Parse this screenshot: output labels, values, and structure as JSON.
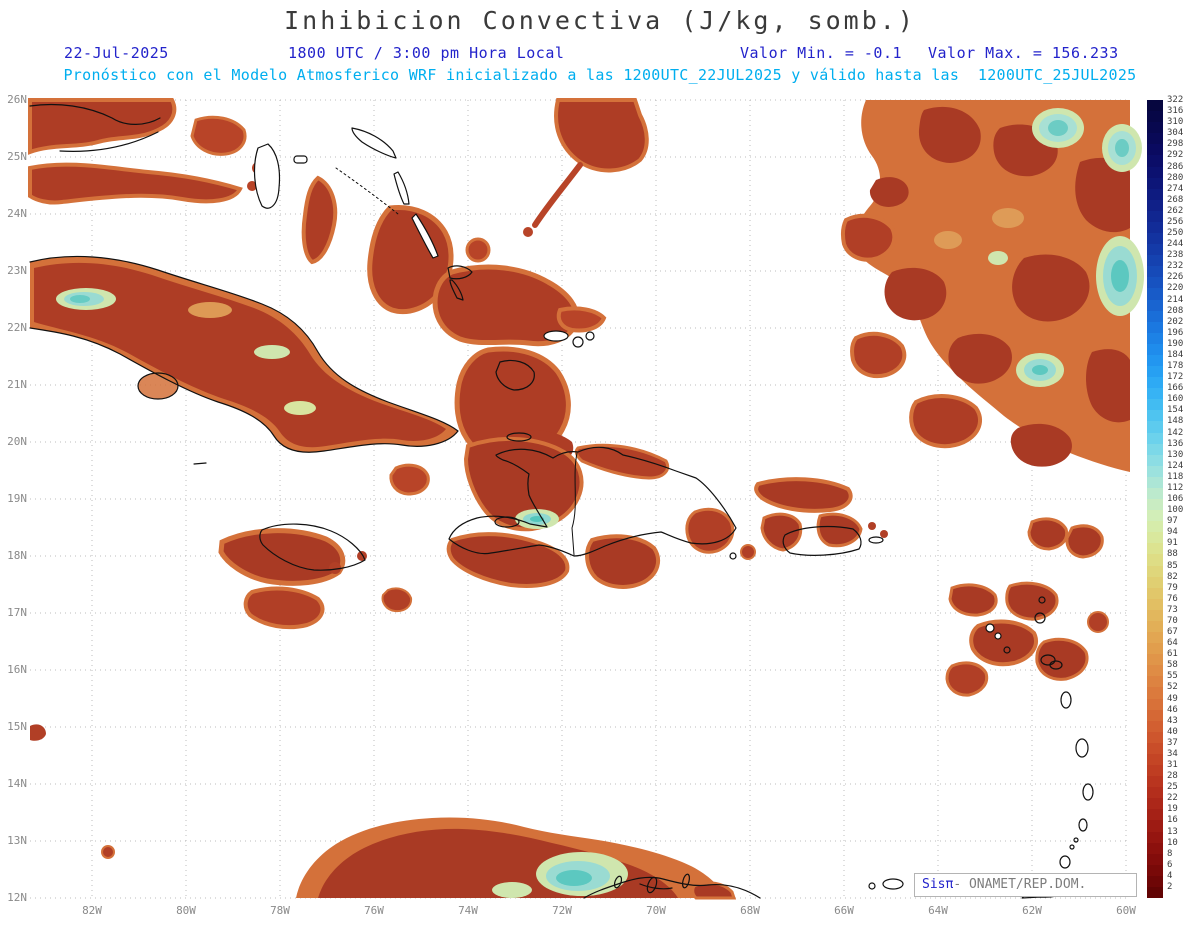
{
  "header": {
    "title": "Inhibicion Convectiva (J/kg, somb.)",
    "date": "22-Jul-2025",
    "time": "1800 UTC / 3:00 pm Hora Local",
    "min_label": "Valor Min. = -0.1",
    "max_label": "Valor Max. = 156.233",
    "forecast": "Pronóstico con el Modelo Atmosferico WRF inicializado a las 1200UTC_22JUL2025 y válido hasta las  1200UTC_25JUL2025"
  },
  "branding": {
    "logo": "Sisπ",
    "org": "- ONAMET/REP.DOM."
  },
  "colors": {
    "header_blue": "#2323cb",
    "note_cyan": "#00aeef",
    "grid_gray": "#bcbcbc",
    "coast_black": "#111111",
    "land_red": "#a93a24",
    "land_orange": "#d4713a",
    "patch_teal": "#5cc8c0"
  },
  "chart_data": {
    "type": "heatmap",
    "title": "Inhibicion Convectiva (J/kg, somb.)",
    "units": "J/kg",
    "value_min": -0.1,
    "value_max": 156.233,
    "model_run": "1200UTC_22JUL2025",
    "valid_until": "1200UTC_25JUL2025",
    "legend_position": "right",
    "grid": "dotted",
    "lat_ticks": [
      "26N",
      "25N",
      "24N",
      "23N",
      "22N",
      "21N",
      "20N",
      "19N",
      "18N",
      "17N",
      "16N",
      "15N",
      "14N",
      "13N",
      "12N"
    ],
    "lon_ticks": [
      "82W",
      "80W",
      "78W",
      "76W",
      "74W",
      "72W",
      "70W",
      "68W",
      "66W",
      "64W",
      "62W",
      "60W"
    ],
    "colorbar_values": [
      322,
      316,
      310,
      304,
      298,
      292,
      286,
      280,
      274,
      268,
      262,
      256,
      250,
      244,
      238,
      232,
      226,
      220,
      214,
      208,
      202,
      196,
      190,
      184,
      178,
      172,
      166,
      160,
      154,
      148,
      142,
      136,
      130,
      124,
      118,
      112,
      106,
      100,
      97,
      94,
      91,
      88,
      85,
      82,
      79,
      76,
      73,
      70,
      67,
      64,
      61,
      58,
      55,
      52,
      49,
      46,
      43,
      40,
      37,
      34,
      31,
      28,
      25,
      22,
      19,
      16,
      13,
      10,
      8,
      6,
      4,
      2
    ],
    "colorbar_colors": [
      "#06063f",
      "#070747",
      "#08084f",
      "#090957",
      "#0a0a60",
      "#0b0d68",
      "#0c1170",
      "#0d1678",
      "#0e1b80",
      "#102088",
      "#112690",
      "#122c98",
      "#1333a0",
      "#143aa8",
      "#1542b0",
      "#164ab8",
      "#1752c0",
      "#185bc8",
      "#1964d0",
      "#1a6ed8",
      "#1b78e0",
      "#1d82e6",
      "#1f8cec",
      "#2296f0",
      "#27a0f2",
      "#2eaaf4",
      "#37b3f4",
      "#42bcf2",
      "#4fc4f0",
      "#5dcbee",
      "#6cd2ec",
      "#7cd8e8",
      "#8cdde4",
      "#9ce2de",
      "#ace6d6",
      "#bceacd",
      "#c9ecc2",
      "#d2eeb8",
      "#d6ecaa",
      "#d9e89d",
      "#dce390",
      "#dedd85",
      "#dfd67b",
      "#e0cf72",
      "#e1c76a",
      "#e2bf63",
      "#e2b75d",
      "#e2af57",
      "#e2a652",
      "#e19e4d",
      "#e09549",
      "#df8c45",
      "#dd8341",
      "#db7a3d",
      "#d87139",
      "#d56835",
      "#d25f31",
      "#ce562d",
      "#c94d29",
      "#c44525",
      "#bf3d22",
      "#b9351f",
      "#b32e1c",
      "#ac2719",
      "#a52116",
      "#9d1b13",
      "#951510",
      "#8c100d",
      "#830c0b",
      "#790908",
      "#6e0606",
      "#620404"
    ]
  }
}
